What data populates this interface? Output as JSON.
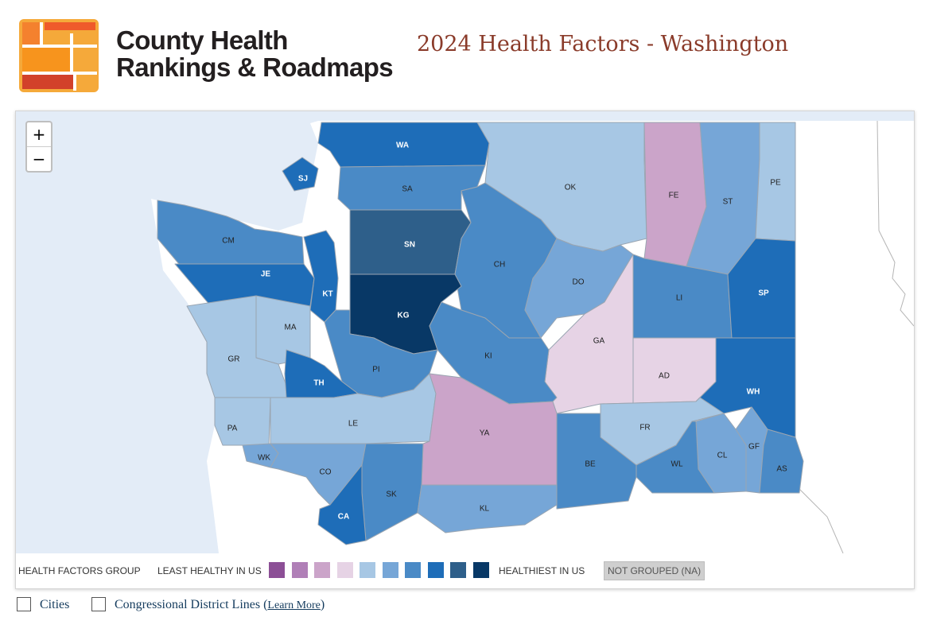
{
  "brand": {
    "line1": "County Health",
    "line2": "Rankings & Roadmaps"
  },
  "page_title": "2024 Health Factors - Washington",
  "zoom": {
    "in": "+",
    "out": "−"
  },
  "palette": [
    "#8c4f96",
    "#b07fb7",
    "#cba4c9",
    "#e6d3e5",
    "#a7c7e4",
    "#76a6d7",
    "#4a8ac6",
    "#1e6db8",
    "#2e5f8a",
    "#083866"
  ],
  "colors": {
    "water": "#e6eef8",
    "border": "#9aa5b1",
    "na": "#cfcfcf"
  },
  "counties": [
    {
      "abbr": "WA",
      "level": 7
    },
    {
      "abbr": "SJ",
      "level": 7
    },
    {
      "abbr": "SA",
      "level": 6
    },
    {
      "abbr": "OK",
      "level": 4
    },
    {
      "abbr": "FE",
      "level": 2
    },
    {
      "abbr": "ST",
      "level": 5
    },
    {
      "abbr": "PE",
      "level": 4
    },
    {
      "abbr": "CM",
      "level": 6
    },
    {
      "abbr": "JE",
      "level": 7
    },
    {
      "abbr": "SN",
      "level": 8
    },
    {
      "abbr": "CH",
      "level": 6
    },
    {
      "abbr": "DO",
      "level": 5
    },
    {
      "abbr": "LI",
      "level": 6
    },
    {
      "abbr": "SP",
      "level": 7
    },
    {
      "abbr": "KT",
      "level": 7
    },
    {
      "abbr": "KG",
      "level": 9
    },
    {
      "abbr": "MA",
      "level": 4
    },
    {
      "abbr": "GR",
      "level": 4
    },
    {
      "abbr": "GA",
      "level": 3
    },
    {
      "abbr": "AD",
      "level": 3
    },
    {
      "abbr": "KI",
      "level": 6
    },
    {
      "abbr": "PI",
      "level": 6
    },
    {
      "abbr": "TH",
      "level": 7
    },
    {
      "abbr": "WH",
      "level": 7
    },
    {
      "abbr": "PA",
      "level": 4
    },
    {
      "abbr": "LE",
      "level": 4
    },
    {
      "abbr": "YA",
      "level": 2
    },
    {
      "abbr": "FR",
      "level": 4
    },
    {
      "abbr": "GF",
      "level": 5
    },
    {
      "abbr": "CL",
      "level": 5
    },
    {
      "abbr": "WL",
      "level": 6
    },
    {
      "abbr": "AS",
      "level": 6
    },
    {
      "abbr": "WK",
      "level": 5
    },
    {
      "abbr": "CO",
      "level": 5
    },
    {
      "abbr": "BE",
      "level": 6
    },
    {
      "abbr": "SK",
      "level": 6
    },
    {
      "abbr": "KL",
      "level": 5
    },
    {
      "abbr": "CA",
      "level": 7
    }
  ],
  "legend": {
    "group_label": "HEALTH FACTORS GROUP",
    "least_label": "LEAST HEALTHY IN US",
    "healthiest_label": "HEALTHIEST IN US",
    "na_label": "NOT GROUPED (NA)"
  },
  "options": {
    "cities_label": "Cities",
    "districts_label": "Congressional District Lines",
    "learn_more": "Learn More"
  }
}
